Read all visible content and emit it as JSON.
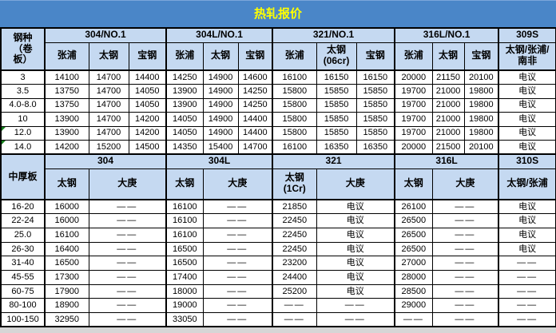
{
  "title": "热轧报价",
  "colors": {
    "title_bg": "#4A86C8",
    "title_text": "#FFFF00",
    "header_bg": "#C5D9F1",
    "border": "#000000",
    "comment_marker": "#15801C"
  },
  "section1": {
    "row_header": "钢种\n（卷\n板）",
    "groups": [
      {
        "label": "304/NO.1",
        "cols": [
          "张浦",
          "太钢",
          "宝钢"
        ]
      },
      {
        "label": "304L/NO.1",
        "cols": [
          "张浦",
          "太钢",
          "宝钢"
        ]
      },
      {
        "label": "321/NO.1",
        "cols": [
          "张浦",
          "太钢\n(06cr)",
          "宝钢"
        ]
      },
      {
        "label": "316L/NO.1",
        "cols": [
          "张浦",
          "太钢",
          "宝钢"
        ]
      },
      {
        "label": "309S",
        "cols": [
          "太钢/张浦/\n南非"
        ]
      }
    ],
    "rows": [
      {
        "label": "3",
        "marker": false,
        "values": [
          "14100",
          "14700",
          "14400",
          "14250",
          "14900",
          "14600",
          "16100",
          "16150",
          "16150",
          "20000",
          "21150",
          "20100",
          "电议"
        ]
      },
      {
        "label": "3.5",
        "marker": false,
        "values": [
          "13750",
          "14700",
          "14050",
          "13900",
          "14900",
          "14250",
          "15800",
          "15850",
          "15850",
          "19700",
          "21000",
          "19800",
          "电议"
        ]
      },
      {
        "label": "4.0-8.0",
        "marker": false,
        "values": [
          "13750",
          "14700",
          "14050",
          "13900",
          "14900",
          "14250",
          "15800",
          "15850",
          "15850",
          "19700",
          "21000",
          "19800",
          "电议"
        ]
      },
      {
        "label": "10",
        "marker": false,
        "values": [
          "13900",
          "14700",
          "14200",
          "14050",
          "14900",
          "14400",
          "15800",
          "15850",
          "15850",
          "19700",
          "21000",
          "19800",
          "电议"
        ]
      },
      {
        "label": "12.0",
        "marker": true,
        "values": [
          "13900",
          "14700",
          "14200",
          "14050",
          "14900",
          "14400",
          "15800",
          "15850",
          "15850",
          "19700",
          "21000",
          "19800",
          "电议"
        ]
      },
      {
        "label": "14.0",
        "marker": true,
        "values": [
          "14200",
          "15200",
          "14500",
          "14350",
          "15400",
          "14700",
          "16100",
          "16350",
          "16350",
          "20000",
          "21500",
          "20100",
          "电议"
        ]
      }
    ]
  },
  "section2": {
    "row_header": "中厚板",
    "groups": [
      {
        "label": "304",
        "cols": [
          "太钢",
          "大庚"
        ]
      },
      {
        "label": "304L",
        "cols": [
          "太钢",
          "大庚"
        ]
      },
      {
        "label": "321",
        "cols": [
          "太钢\n(1Cr)",
          "大庚"
        ]
      },
      {
        "label": "316L",
        "cols": [
          "太钢",
          "大庚"
        ]
      },
      {
        "label": "310S",
        "cols": [
          "太钢/张浦"
        ]
      }
    ],
    "rows": [
      {
        "label": "16-20",
        "marker": false,
        "values": [
          "16000",
          "——",
          "16100",
          "——",
          "21850",
          "电议",
          "26100",
          "——",
          "电议"
        ]
      },
      {
        "label": "22-24",
        "marker": false,
        "values": [
          "16000",
          "——",
          "16100",
          "——",
          "22450",
          "电议",
          "26500",
          "——",
          "电议"
        ]
      },
      {
        "label": "25.0",
        "marker": false,
        "values": [
          "16100",
          "——",
          "16100",
          "——",
          "22450",
          "电议",
          "26500",
          "——",
          "电议"
        ]
      },
      {
        "label": "26-30",
        "marker": false,
        "values": [
          "16400",
          "——",
          "16500",
          "——",
          "22450",
          "电议",
          "26500",
          "——",
          "电议"
        ]
      },
      {
        "label": "31-40",
        "marker": false,
        "values": [
          "16500",
          "——",
          "16500",
          "——",
          "23200",
          "电议",
          "27000",
          "——",
          "——"
        ]
      },
      {
        "label": "45-55",
        "marker": false,
        "values": [
          "17300",
          "——",
          "17400",
          "——",
          "24400",
          "电议",
          "28000",
          "——",
          "——"
        ]
      },
      {
        "label": "60-75",
        "marker": false,
        "values": [
          "17900",
          "——",
          "18000",
          "——",
          "25200",
          "电议",
          "28500",
          "——",
          "——"
        ]
      },
      {
        "label": "80-100",
        "marker": false,
        "values": [
          "18900",
          "——",
          "19000",
          "——",
          "——",
          "——",
          "29000",
          "——",
          "——"
        ]
      },
      {
        "label": "100-150",
        "marker": false,
        "values": [
          "32950",
          "——",
          "33050",
          "——",
          "——",
          "——",
          "——",
          "——",
          "——"
        ]
      }
    ]
  }
}
